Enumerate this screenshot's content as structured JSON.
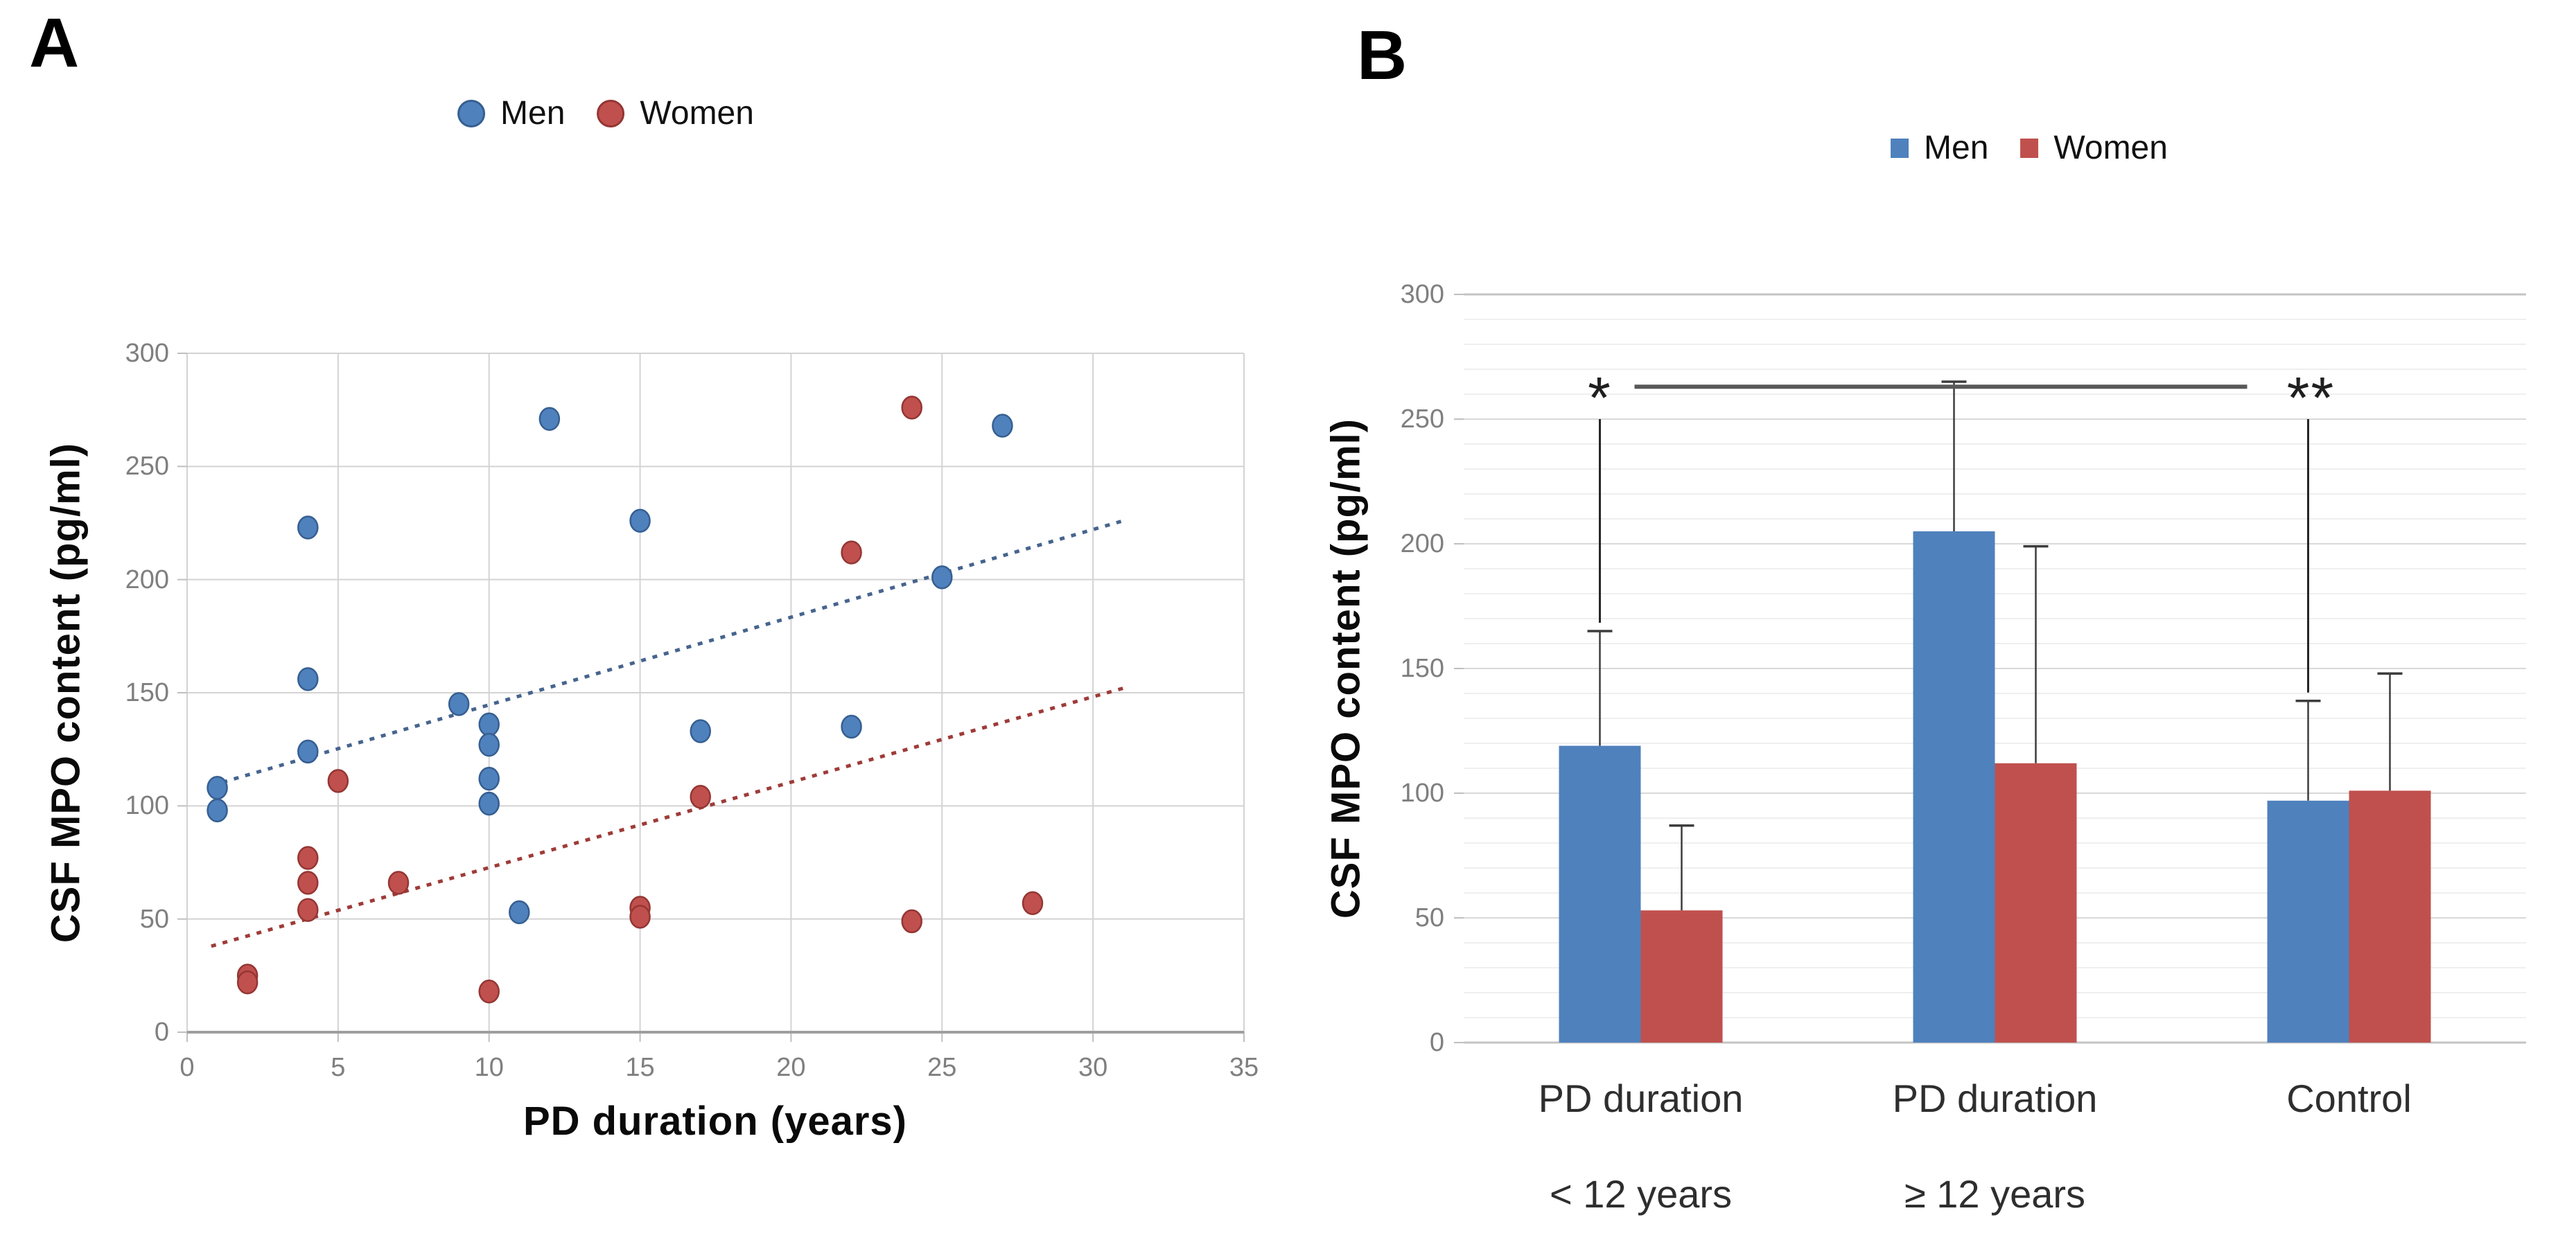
{
  "panels": {
    "a": {
      "label": "A"
    },
    "b": {
      "label": "B"
    }
  },
  "chart_data": [
    {
      "type": "scatter",
      "panel": "A",
      "xlabel": "PD duration (years)",
      "ylabel": "CSF MPO content  (pg/ml)",
      "xlim": [
        0,
        35
      ],
      "ylim": [
        0,
        300
      ],
      "xticks": [
        0,
        5,
        10,
        15,
        20,
        25,
        30,
        35
      ],
      "yticks": [
        0,
        50,
        100,
        150,
        200,
        250,
        300
      ],
      "grid": true,
      "legend_position": "top",
      "series": [
        {
          "name": "Men",
          "color": "#4F81BD",
          "edge": "#365F91",
          "points": [
            [
              1,
              108
            ],
            [
              1,
              98
            ],
            [
              4,
              223
            ],
            [
              4,
              156
            ],
            [
              4,
              124
            ],
            [
              9,
              145
            ],
            [
              10,
              136
            ],
            [
              10,
              127
            ],
            [
              10,
              112
            ],
            [
              10,
              101
            ],
            [
              11,
              53
            ],
            [
              12,
              271
            ],
            [
              15,
              226
            ],
            [
              17,
              133
            ],
            [
              22,
              135
            ],
            [
              25,
              201
            ],
            [
              27,
              268
            ]
          ],
          "trendline": {
            "x1": 0.8,
            "y1": 109,
            "x2": 31,
            "y2": 226,
            "color": "#46648E",
            "style": "dotted"
          }
        },
        {
          "name": "Women",
          "color": "#C0504D",
          "edge": "#943634",
          "points": [
            [
              2,
              25
            ],
            [
              2,
              22
            ],
            [
              4,
              77
            ],
            [
              4,
              66
            ],
            [
              4,
              54
            ],
            [
              5,
              111
            ],
            [
              7,
              66
            ],
            [
              10,
              18
            ],
            [
              15,
              55
            ],
            [
              15,
              51
            ],
            [
              17,
              104
            ],
            [
              22,
              212
            ],
            [
              24,
              276
            ],
            [
              24,
              49
            ],
            [
              28,
              57
            ]
          ],
          "trendline": {
            "x1": 0.8,
            "y1": 38,
            "x2": 31,
            "y2": 152,
            "color": "#9E3B38",
            "style": "dotted"
          }
        }
      ]
    },
    {
      "type": "bar",
      "panel": "B",
      "ylabel": "CSF MPO content  (pg/ml)",
      "ylim": [
        0,
        300
      ],
      "yticks_major": [
        0,
        50,
        100,
        150,
        200,
        250,
        300
      ],
      "ytick_minor_step": 10,
      "categories_line1": [
        "PD duration",
        "PD duration",
        "Control"
      ],
      "categories_line2": [
        "< 12 years",
        "≥  12 years",
        ""
      ],
      "series": [
        {
          "name": "Men",
          "color": "#4F81BD",
          "values": [
            119,
            205,
            97
          ],
          "errors_up": [
            46,
            60,
            40
          ]
        },
        {
          "name": "Women",
          "color": "#C0504D",
          "values": [
            53,
            112,
            101
          ],
          "errors_up": [
            34,
            87,
            47
          ]
        }
      ],
      "significance": {
        "bracket_y": 263,
        "left_label": "*",
        "right_label": "**",
        "left_drop_top": 250,
        "left_drop_cap": 165,
        "right_drop_top": 250,
        "right_drop_cap": 137
      }
    }
  ],
  "colors": {
    "gridline_major_a": "#d3d3d3",
    "gridline_major_b": "#d9d9d9",
    "gridline_minor_b": "#efefef",
    "axis_line": "#9e9e9e",
    "tick_text": "#7f7f7f",
    "error_bar": "#3d3d3d",
    "sig_line": "#595959"
  }
}
